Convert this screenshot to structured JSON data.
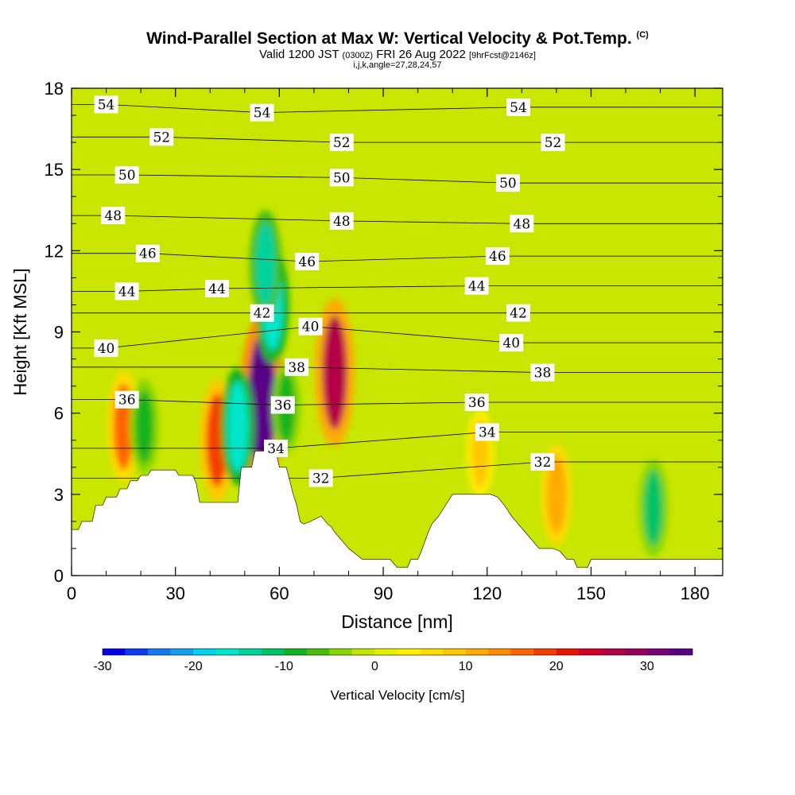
{
  "titles": {
    "main": "Wind-Parallel Section at Max W: Vertical Velocity & Pot.Temp.",
    "main_unit": "(C)",
    "valid_prefix": "Valid 1200 JST",
    "valid_utc": "(0300Z)",
    "valid_date": "FRI 26 Aug 2022",
    "forecast": "[9hrFcst@2146z]",
    "indices": "i,j,k,angle=27,28,24,57"
  },
  "colors": {
    "background_field": "#c8e600",
    "terrain": "#ffffff",
    "contour": "#000000",
    "scale": [
      "#0000e6",
      "#0a3cf0",
      "#1478f0",
      "#14a0f0",
      "#00d2f0",
      "#00e6c8",
      "#00d29b",
      "#00c364",
      "#14b41e",
      "#46be0a",
      "#87d700",
      "#c3e600",
      "#e6f000",
      "#fff000",
      "#ffdc00",
      "#ffc800",
      "#ffaa00",
      "#ff8c00",
      "#ff6400",
      "#f53c00",
      "#e61400",
      "#d20028",
      "#b40046",
      "#96005a",
      "#780078",
      "#5a0087"
    ]
  },
  "chart_data": {
    "type": "heatmap",
    "xlabel": "Distance [nm]",
    "ylabel": "Height [Kft MSL]",
    "xlim": [
      0,
      188
    ],
    "ylim": [
      0,
      18
    ],
    "x_ticks": [
      0,
      30,
      60,
      90,
      120,
      150,
      180
    ],
    "y_ticks": [
      0,
      3,
      6,
      9,
      12,
      15,
      18
    ],
    "colorbar": {
      "label": "Vertical Velocity [cm/s]",
      "range": [
        -30,
        35
      ],
      "ticks": [
        -30,
        -20,
        -10,
        0,
        10,
        20,
        30
      ]
    },
    "terrain_profile": [
      [
        0,
        1.7
      ],
      [
        2,
        1.7
      ],
      [
        3,
        2.0
      ],
      [
        6,
        2.0
      ],
      [
        7,
        2.6
      ],
      [
        9,
        2.6
      ],
      [
        10,
        2.9
      ],
      [
        13,
        2.9
      ],
      [
        14,
        3.2
      ],
      [
        16,
        3.2
      ],
      [
        17,
        3.5
      ],
      [
        19,
        3.5
      ],
      [
        20,
        3.7
      ],
      [
        22,
        3.7
      ],
      [
        23,
        3.9
      ],
      [
        30,
        3.9
      ],
      [
        31,
        3.7
      ],
      [
        35,
        3.7
      ],
      [
        36,
        3.4
      ],
      [
        37,
        2.7
      ],
      [
        48,
        2.7
      ],
      [
        49,
        4.0
      ],
      [
        52,
        4.0
      ],
      [
        53,
        4.6
      ],
      [
        59,
        4.6
      ],
      [
        60,
        4.0
      ],
      [
        62,
        4.0
      ],
      [
        63,
        3.5
      ],
      [
        64,
        3.0
      ],
      [
        65,
        2.6
      ],
      [
        66,
        2.0
      ],
      [
        67,
        1.9
      ],
      [
        69,
        2.0
      ],
      [
        72,
        2.2
      ],
      [
        74,
        1.9
      ],
      [
        75,
        1.8
      ],
      [
        76,
        1.6
      ],
      [
        78,
        1.3
      ],
      [
        80,
        1.0
      ],
      [
        84,
        0.6
      ],
      [
        92,
        0.6
      ],
      [
        94,
        0.3
      ],
      [
        97,
        0.3
      ],
      [
        98,
        0.6
      ],
      [
        100,
        0.6
      ],
      [
        101,
        0.9
      ],
      [
        103,
        1.6
      ],
      [
        104,
        1.9
      ],
      [
        106,
        2.2
      ],
      [
        108,
        2.6
      ],
      [
        110,
        3.0
      ],
      [
        121,
        3.0
      ],
      [
        123,
        2.9
      ],
      [
        125,
        2.6
      ],
      [
        127,
        2.2
      ],
      [
        129,
        1.9
      ],
      [
        131,
        1.6
      ],
      [
        133,
        1.3
      ],
      [
        135,
        1.0
      ],
      [
        139,
        1.0
      ],
      [
        141,
        0.9
      ],
      [
        143,
        0.6
      ],
      [
        145,
        0.6
      ],
      [
        146,
        0.3
      ],
      [
        149,
        0.3
      ],
      [
        150,
        0.6
      ],
      [
        188,
        0.6
      ]
    ],
    "theta_contour_labels": [
      {
        "value": "54",
        "x": 10,
        "y": 17.4
      },
      {
        "value": "54",
        "x": 55,
        "y": 17.1
      },
      {
        "value": "54",
        "x": 129,
        "y": 17.3
      },
      {
        "value": "52",
        "x": 26,
        "y": 16.2
      },
      {
        "value": "52",
        "x": 78,
        "y": 16.0
      },
      {
        "value": "52",
        "x": 139,
        "y": 16.0
      },
      {
        "value": "50",
        "x": 16,
        "y": 14.8
      },
      {
        "value": "50",
        "x": 78,
        "y": 14.7
      },
      {
        "value": "50",
        "x": 126,
        "y": 14.5
      },
      {
        "value": "48",
        "x": 12,
        "y": 13.3
      },
      {
        "value": "48",
        "x": 78,
        "y": 13.1
      },
      {
        "value": "48",
        "x": 130,
        "y": 13.0
      },
      {
        "value": "46",
        "x": 22,
        "y": 11.9
      },
      {
        "value": "46",
        "x": 68,
        "y": 11.6
      },
      {
        "value": "46",
        "x": 123,
        "y": 11.8
      },
      {
        "value": "44",
        "x": 16,
        "y": 10.5
      },
      {
        "value": "44",
        "x": 42,
        "y": 10.6
      },
      {
        "value": "44",
        "x": 117,
        "y": 10.7
      },
      {
        "value": "42",
        "x": 55,
        "y": 9.7
      },
      {
        "value": "42",
        "x": 129,
        "y": 9.7
      },
      {
        "value": "40",
        "x": 10,
        "y": 8.4
      },
      {
        "value": "40",
        "x": 69,
        "y": 9.2
      },
      {
        "value": "40",
        "x": 127,
        "y": 8.6
      },
      {
        "value": "38",
        "x": 65,
        "y": 7.7
      },
      {
        "value": "38",
        "x": 136,
        "y": 7.5
      },
      {
        "value": "36",
        "x": 16,
        "y": 6.5
      },
      {
        "value": "36",
        "x": 61,
        "y": 6.3
      },
      {
        "value": "36",
        "x": 117,
        "y": 6.4
      },
      {
        "value": "34",
        "x": 59,
        "y": 4.7
      },
      {
        "value": "34",
        "x": 120,
        "y": 5.3
      },
      {
        "value": "32",
        "x": 72,
        "y": 3.6
      },
      {
        "value": "32",
        "x": 136,
        "y": 4.2
      }
    ],
    "w_features": [
      {
        "x": 76,
        "y": 7.5,
        "w_cm_s": 26
      },
      {
        "x": 55,
        "y": 6.5,
        "w_cm_s": 33
      },
      {
        "x": 42,
        "y": 5.0,
        "w_cm_s": 18
      },
      {
        "x": 15,
        "y": 5.5,
        "w_cm_s": 15
      },
      {
        "x": 48,
        "y": 5.5,
        "w_cm_s": -17
      },
      {
        "x": 58,
        "y": 10.0,
        "w_cm_s": -17
      },
      {
        "x": 56,
        "y": 11.5,
        "w_cm_s": -14
      },
      {
        "x": 168,
        "y": 2.5,
        "w_cm_s": -11
      },
      {
        "x": 21,
        "y": 5.5,
        "w_cm_s": -10
      },
      {
        "x": 62,
        "y": 6.2,
        "w_cm_s": -9
      },
      {
        "x": 118,
        "y": 4.5,
        "w_cm_s": 8
      },
      {
        "x": 140,
        "y": 3.0,
        "w_cm_s": 12
      }
    ]
  }
}
